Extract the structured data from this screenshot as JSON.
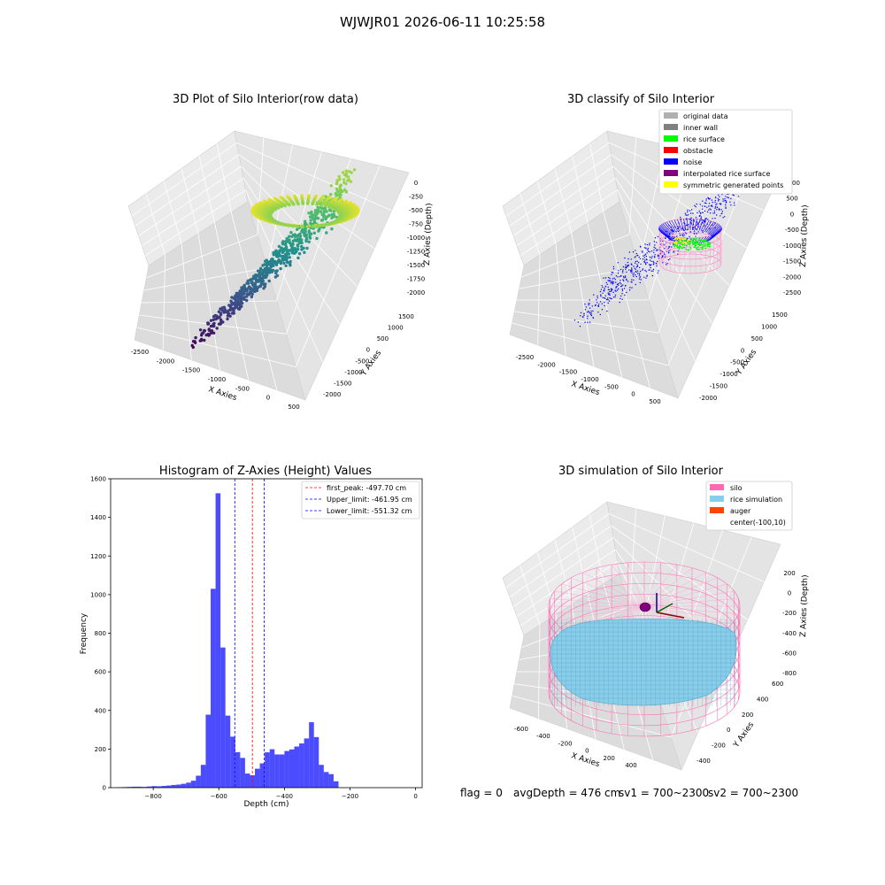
{
  "figure": {
    "suptitle": "WJWJR01 2026-06-11 10:25:58",
    "status": {
      "flag": "flag = 0",
      "avg_depth": "avgDepth = 476 cm",
      "sv1": "sv1 = 700~2300",
      "sv2": "sv2 = 700~2300"
    }
  },
  "chart_data": [
    {
      "type": "scatter",
      "title": "3D Plot of Silo Interior(row data)",
      "xlabel": "X Axies",
      "ylabel": "Y Axies",
      "zlabel": "Z Axies (Depth)",
      "x_ticks": [
        -2500,
        -2000,
        -1500,
        -1000,
        -500,
        0,
        500
      ],
      "y_ticks": [
        -2000,
        -1500,
        -1000,
        -500,
        0,
        500,
        1000,
        1500
      ],
      "z_ticks": [
        0,
        -250,
        -500,
        -750,
        -1000,
        -1250,
        -1500,
        -1750,
        -2000
      ],
      "colormap": "viridis"
    },
    {
      "type": "scatter",
      "title": "3D classify of Silo Interior",
      "xlabel": "X Axies",
      "ylabel": "Y Axies",
      "zlabel": "Z Axies (Depth)",
      "x_ticks": [
        -2500,
        -2000,
        -1500,
        -1000,
        -500,
        0,
        500
      ],
      "y_ticks": [
        -2000,
        -1500,
        -1000,
        -500,
        0,
        500,
        1000,
        1500
      ],
      "z_ticks": [
        1000,
        500,
        0,
        -500,
        -1000,
        -1500,
        -2000,
        -2500
      ],
      "legend_position": "top-right",
      "legend": [
        {
          "label": "original data",
          "color": "#b0b0b0"
        },
        {
          "label": "inner wall",
          "color": "#808080"
        },
        {
          "label": "rice surface",
          "color": "#00ff00"
        },
        {
          "label": "obstacle",
          "color": "#ff0000"
        },
        {
          "label": "noise",
          "color": "#0000ff"
        },
        {
          "label": "interpolated rice surface",
          "color": "#800080"
        },
        {
          "label": "symmetric generated points",
          "color": "#ffff00"
        }
      ]
    },
    {
      "type": "bar",
      "title": "Histogram of Z-Axies (Height) Values",
      "xlabel": "Depth (cm)",
      "ylabel": "Frequency",
      "xlim": [
        -930,
        20
      ],
      "ylim": [
        0,
        1600
      ],
      "x_ticks": [
        -800,
        -600,
        -400,
        -200,
        0
      ],
      "y_ticks": [
        0,
        200,
        400,
        600,
        800,
        1000,
        1200,
        1400,
        1600
      ],
      "bar_color": "#0000ff",
      "bin_start": -910,
      "bin_width": 15,
      "values": [
        2,
        3,
        4,
        5,
        5,
        4,
        6,
        8,
        7,
        9,
        11,
        14,
        16,
        20,
        26,
        36,
        62,
        118,
        378,
        1030,
        1525,
        726,
        373,
        264,
        184,
        154,
        73,
        64,
        98,
        126,
        183,
        199,
        172,
        172,
        190,
        198,
        213,
        229,
        255,
        339,
        262,
        118,
        81,
        70,
        33
      ],
      "legend_position": "top-right",
      "lines": [
        {
          "label": "first_peak: -497.70 cm",
          "value": -497.7,
          "color": "#ff0000"
        },
        {
          "label": "Upper_limit: -461.95 cm",
          "value": -461.95,
          "color": "#0000ff"
        },
        {
          "label": "Lower_limit: -551.32 cm",
          "value": -551.32,
          "color": "#0000ff"
        }
      ]
    },
    {
      "type": "surface",
      "title": "3D simulation of Silo Interior",
      "xlabel": "X Axies",
      "ylabel": "Y Axies",
      "zlabel": "Z Axies (Depth)",
      "x_ticks": [
        -600,
        -400,
        -200,
        0,
        200,
        400
      ],
      "y_ticks": [
        -400,
        -200,
        0,
        200,
        400,
        600
      ],
      "z_ticks": [
        200,
        0,
        -200,
        -400,
        -600,
        -800
      ],
      "legend_position": "top-right",
      "legend": [
        {
          "label": "silo",
          "color": "#ff69b4"
        },
        {
          "label": "rice simulation",
          "color": "#87ceeb"
        },
        {
          "label": "auger",
          "color": "#ff4500"
        },
        {
          "label": "center(-100,10)",
          "color": "none"
        }
      ]
    }
  ]
}
